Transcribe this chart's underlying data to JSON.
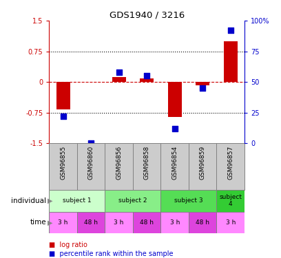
{
  "title": "GDS1940 / 3216",
  "samples": [
    "GSM96855",
    "GSM96860",
    "GSM96856",
    "GSM96858",
    "GSM96854",
    "GSM96859",
    "GSM96857"
  ],
  "log_ratio": [
    -0.68,
    0.0,
    0.12,
    0.08,
    -0.85,
    -0.08,
    1.0
  ],
  "percentile_rank": [
    22,
    0,
    58,
    55,
    12,
    45,
    92
  ],
  "ylim_left": [
    -1.5,
    1.5
  ],
  "ylim_right": [
    0,
    100
  ],
  "yticks_left": [
    -1.5,
    -0.75,
    0,
    0.75,
    1.5
  ],
  "yticks_right": [
    0,
    25,
    50,
    75,
    100
  ],
  "dotted_lines": [
    -0.75,
    0.75
  ],
  "bar_color": "#cc0000",
  "dot_color": "#0000cc",
  "bar_width": 0.5,
  "dot_size": 30,
  "individuals": [
    {
      "label": "subject 1",
      "start": 0,
      "end": 2,
      "color": "#ccffcc"
    },
    {
      "label": "subject 2",
      "start": 2,
      "end": 4,
      "color": "#88ee88"
    },
    {
      "label": "subject 3",
      "start": 4,
      "end": 6,
      "color": "#55dd55"
    },
    {
      "label": "subject\n4",
      "start": 6,
      "end": 7,
      "color": "#33cc33"
    }
  ],
  "times": [
    {
      "label": "3 h",
      "start": 0,
      "end": 1,
      "color": "#ff88ff"
    },
    {
      "label": "48 h",
      "start": 1,
      "end": 2,
      "color": "#dd44dd"
    },
    {
      "label": "3 h",
      "start": 2,
      "end": 3,
      "color": "#ff88ff"
    },
    {
      "label": "48 h",
      "start": 3,
      "end": 4,
      "color": "#dd44dd"
    },
    {
      "label": "3 h",
      "start": 4,
      "end": 5,
      "color": "#ff88ff"
    },
    {
      "label": "48 h",
      "start": 5,
      "end": 6,
      "color": "#dd44dd"
    },
    {
      "label": "3 h",
      "start": 6,
      "end": 7,
      "color": "#ff88ff"
    }
  ],
  "legend_bar_label": "log ratio",
  "legend_dot_label": "percentile rank within the sample",
  "label_individual": "individual",
  "label_time": "time",
  "sample_bg": "#cccccc",
  "arrow_color": "#888888",
  "fig_width": 4.08,
  "fig_height": 3.75,
  "fig_dpi": 100
}
